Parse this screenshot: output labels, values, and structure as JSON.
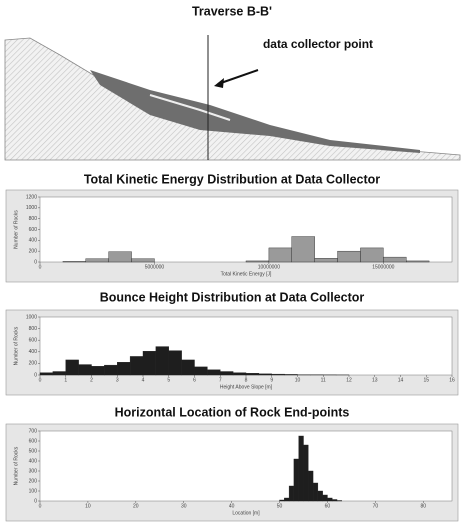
{
  "diagram": {
    "title": "Traverse B-B'",
    "annotation": "data collector point"
  },
  "chart_data": [
    {
      "type": "histogram",
      "title": "Total Kinetic Energy Distribution at Data Collector",
      "xlabel": "Total Kinetic Energy [J]",
      "ylabel": "Number of Rocks",
      "color": "#9a9a9a",
      "bins": [
        0,
        1000000,
        2000000,
        3000000,
        4000000,
        5000000,
        6000000,
        7000000,
        8000000,
        9000000,
        10000000,
        11000000,
        12000000,
        13000000,
        14000000,
        15000000,
        16000000,
        17000000,
        18000000
      ],
      "counts": [
        0,
        10,
        60,
        190,
        60,
        0,
        0,
        0,
        0,
        20,
        260,
        470,
        70,
        200,
        260,
        90,
        20,
        0
      ],
      "xlim": [
        0,
        18000000
      ],
      "xticks": [
        0,
        5000000,
        10000000,
        15000000
      ],
      "ylim": [
        0,
        1200
      ],
      "yticks": [
        0,
        200,
        400,
        600,
        800,
        1000,
        1200
      ]
    },
    {
      "type": "histogram",
      "title": "Bounce Height Distribution at Data Collector",
      "xlabel": "Height Above Slope [m]",
      "ylabel": "Number of Rocks",
      "color": "#1e1e1e",
      "bins": [
        0,
        0.5,
        1,
        1.5,
        2,
        2.5,
        3,
        3.5,
        4,
        4.5,
        5,
        5.5,
        6,
        6.5,
        7,
        7.5,
        8,
        8.5,
        9,
        9.5,
        10,
        10.5,
        11,
        11.5,
        12
      ],
      "counts": [
        40,
        60,
        260,
        180,
        150,
        170,
        220,
        320,
        410,
        490,
        420,
        260,
        140,
        90,
        60,
        40,
        30,
        20,
        15,
        10,
        5,
        5,
        3,
        2
      ],
      "xlim": [
        0,
        16
      ],
      "xticks": [
        0,
        1,
        2,
        3,
        4,
        5,
        6,
        7,
        8,
        9,
        10,
        11,
        12,
        13,
        14,
        15,
        16
      ],
      "ylim": [
        0,
        1000
      ],
      "yticks": [
        0,
        200,
        400,
        600,
        800,
        1000
      ]
    },
    {
      "type": "histogram",
      "title": "Horizontal Location of Rock End-points",
      "xlabel": "Location [m]",
      "ylabel": "Number of Rocks",
      "color": "#1e1e1e",
      "bins": [
        50,
        51,
        52,
        53,
        54,
        55,
        56,
        57,
        58,
        59,
        60,
        61,
        62,
        63
      ],
      "counts": [
        10,
        30,
        150,
        420,
        650,
        560,
        300,
        180,
        100,
        60,
        30,
        15,
        5
      ],
      "xlim": [
        0,
        86
      ],
      "xticks": [
        0,
        10,
        20,
        30,
        40,
        50,
        60,
        70,
        80
      ],
      "ylim": [
        0,
        700
      ],
      "yticks": [
        0,
        100,
        200,
        300,
        400,
        500,
        600,
        700
      ]
    }
  ]
}
